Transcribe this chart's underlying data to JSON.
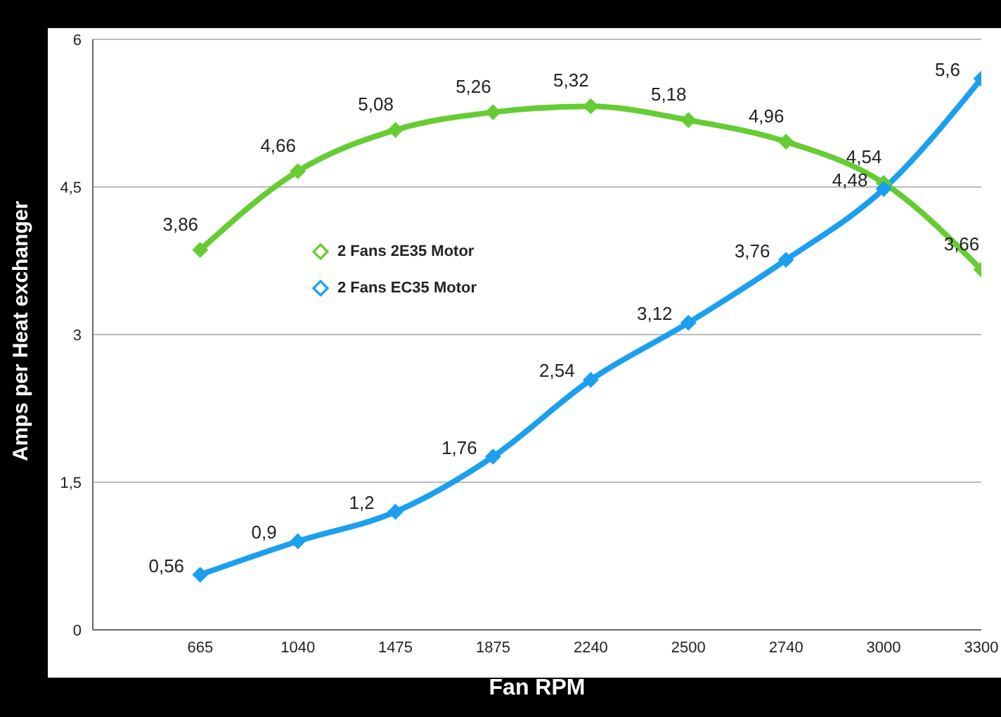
{
  "chart_data": {
    "type": "line",
    "xlabel": "Fan RPM",
    "ylabel": "Amps per Heat exchanger",
    "categories": [
      "665",
      "1040",
      "1475",
      "1875",
      "2240",
      "2500",
      "2740",
      "3000",
      "3300"
    ],
    "series": [
      {
        "name": "2 Fans 2E35 Motor",
        "color": "#66cc33",
        "values": [
          3.86,
          4.66,
          5.08,
          5.26,
          5.32,
          5.18,
          4.96,
          4.54,
          3.66
        ],
        "value_labels": [
          "3,86",
          "4,66",
          "5,08",
          "5,26",
          "5,32",
          "5,18",
          "4,96",
          "4,54",
          "3,66"
        ]
      },
      {
        "name": "2 Fans EC35 Motor",
        "color": "#1c9ff0",
        "values": [
          0.56,
          0.9,
          1.2,
          1.76,
          2.54,
          3.12,
          3.76,
          4.48,
          5.6
        ],
        "value_labels": [
          "0,56",
          "0,9",
          "1,2",
          "1,76",
          "2,54",
          "3,12",
          "3,76",
          "4,48",
          "5,6"
        ]
      }
    ],
    "ylim": [
      0,
      6
    ],
    "yticks": [
      0,
      {
        "value": 1.5,
        "label": "1,5"
      },
      3,
      {
        "value": 4.5,
        "label": "4,5"
      },
      6
    ],
    "grid": "y",
    "legend": "left",
    "marker": "diamond",
    "line_style": "solid"
  }
}
